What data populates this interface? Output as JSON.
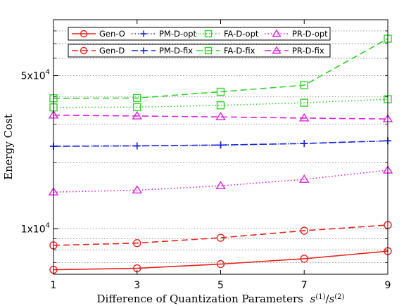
{
  "chart_data": {
    "type": "line",
    "title": "",
    "xlabel_prefix": "Difference of Quantization Parameters",
    "xlabel_math": {
      "base": "s",
      "sup1": "(1)",
      "slash": "/",
      "sup2": "(2)"
    },
    "ylabel": "Energy Cost",
    "y_scale": "log",
    "x": [
      1,
      3,
      5,
      7,
      9
    ],
    "xlim": [
      1,
      9
    ],
    "ylim": [
      6200,
      90000
    ],
    "x_ticks": [
      1,
      3,
      5,
      7,
      9
    ],
    "y_ticks": [
      {
        "value": 10000,
        "base": "1x10",
        "exp": "4"
      },
      {
        "value": 50000,
        "base": "5x10",
        "exp": "4"
      }
    ],
    "grid": "y-minor-dotted",
    "legend_position": "top",
    "series": [
      {
        "name": "Gen-O",
        "color": "#e8231f",
        "line": "solid",
        "marker": "circle",
        "values": [
          6500,
          6600,
          6900,
          7300,
          7900
        ]
      },
      {
        "name": "Gen-D",
        "color": "#e8231f",
        "line": "dashed",
        "marker": "circle",
        "values": [
          8400,
          8600,
          9100,
          9800,
          10400
        ]
      },
      {
        "name": "PM-D-opt",
        "color": "#1826e0",
        "line": "dotted",
        "marker": "plus",
        "values": [
          23800,
          23900,
          24100,
          24500,
          25200
        ]
      },
      {
        "name": "PM-D-fix",
        "color": "#1826e0",
        "line": "dashed",
        "marker": "plus",
        "values": [
          23800,
          23900,
          24100,
          24500,
          25200
        ]
      },
      {
        "name": "FA-D-opt",
        "color": "#34d12e",
        "line": "dotted",
        "marker": "square",
        "values": [
          35800,
          35900,
          36600,
          37600,
          39000
        ]
      },
      {
        "name": "FA-D-fix",
        "color": "#34d12e",
        "line": "dashed",
        "marker": "square",
        "values": [
          39400,
          39500,
          42200,
          45200,
          73700
        ]
      },
      {
        "name": "PR-D-opt",
        "color": "#e020e0",
        "line": "dotted",
        "marker": "triangle",
        "values": [
          14700,
          15000,
          15700,
          16800,
          18500
        ]
      },
      {
        "name": "PR-D-fix",
        "color": "#e020e0",
        "line": "dashed",
        "marker": "triangle",
        "values": [
          33000,
          32700,
          32400,
          32000,
          31700
        ]
      }
    ],
    "legend_rows": [
      [
        "Gen-O",
        "PM-D-opt",
        "FA-D-opt",
        "PR-D-opt"
      ],
      [
        "Gen-D",
        "PM-D-fix",
        "FA-D-fix",
        "PR-D-fix"
      ]
    ]
  }
}
